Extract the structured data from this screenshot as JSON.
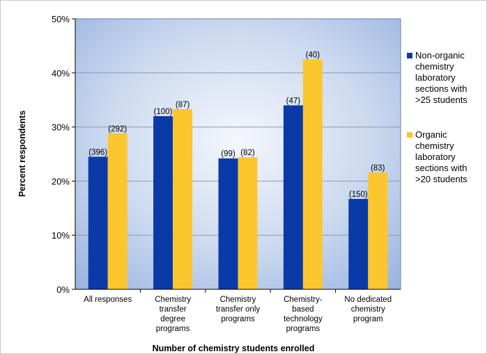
{
  "chart_data": {
    "type": "bar",
    "categories": [
      [
        "All responses"
      ],
      [
        "Chemistry",
        "transfer",
        "degree",
        "programs"
      ],
      [
        "Chemistry",
        "transfer only",
        "programs"
      ],
      [
        "Chemistry-",
        "based",
        "technology",
        "programs"
      ],
      [
        "No dedicated",
        "chemistry",
        "program"
      ]
    ],
    "series": [
      {
        "name": [
          "Non-organic",
          "chemistry",
          "laboratory",
          "sections with",
          ">25 students"
        ],
        "color": "#0a39a8",
        "values": [
          24.5,
          32.0,
          24.2,
          34.0,
          16.7
        ],
        "labels": [
          "(396)",
          "(100)",
          "(99)",
          "(47)",
          "(150)"
        ]
      },
      {
        "name": [
          "Organic",
          "chemistry",
          "laboratory",
          "sections with",
          ">20 students"
        ],
        "color": "#fcc62f",
        "values": [
          28.8,
          33.3,
          24.4,
          42.5,
          21.6
        ],
        "labels": [
          "(292)",
          "(87)",
          "(82)",
          "(40)",
          "(83)"
        ]
      }
    ],
    "yticks": [
      "0%",
      "10%",
      "20%",
      "30%",
      "40%",
      "50%"
    ],
    "ylim": [
      0,
      50
    ],
    "xlabel": "Number of chemistry students enrolled",
    "ylabel": "Percent respondents",
    "grid": true,
    "legend_position": "right"
  }
}
